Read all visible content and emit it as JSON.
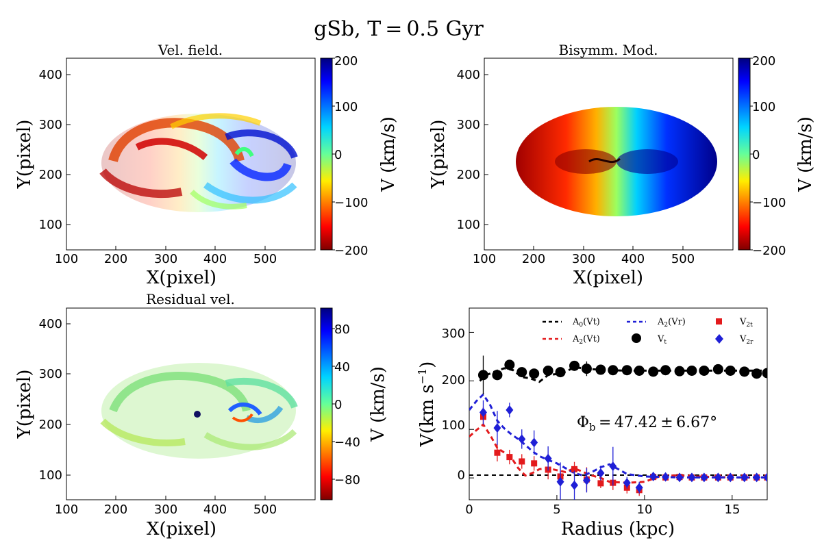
{
  "figure": {
    "suptitle": "gSb, T = 0.5 Gyr"
  },
  "panels": {
    "vel_field": {
      "title": "Vel. field.",
      "xlabel": "X(pixel)",
      "ylabel": "Y(pixel)",
      "xticks": [
        "100",
        "200",
        "300",
        "400",
        "500"
      ],
      "yticks": [
        "100",
        "200",
        "300",
        "400"
      ],
      "colorbar_label": "V (km/s)",
      "colorbar_ticks": [
        "200",
        "100",
        "0",
        "−100",
        "−200"
      ]
    },
    "bisymm_mod": {
      "title": "Bisymm. Mod.",
      "xlabel": "X(pixel)",
      "ylabel": "Y(pixel)",
      "xticks": [
        "100",
        "200",
        "300",
        "400",
        "500"
      ],
      "yticks": [
        "100",
        "200",
        "300",
        "400"
      ],
      "colorbar_label": "V (km/s)",
      "colorbar_ticks": [
        "200",
        "100",
        "0",
        "−100",
        "−200"
      ]
    },
    "residual": {
      "title": "Residual vel.",
      "xlabel": "X(pixel)",
      "ylabel": "Y(pixel)",
      "xticks": [
        "100",
        "200",
        "300",
        "400",
        "500"
      ],
      "yticks": [
        "100",
        "200",
        "300",
        "400"
      ],
      "colorbar_label": "V (km/s)",
      "colorbar_ticks": [
        "80",
        "40",
        "0",
        "−40",
        "−80"
      ]
    },
    "rotation_curve": {
      "xlabel": "Radius (kpc)",
      "ylabel": "V(km s",
      "ylabel_sup": "−1",
      "ylabel_close": ")",
      "xticks": [
        "0",
        "5",
        "10",
        "15"
      ],
      "yticks": [
        "0",
        "100",
        "200",
        "300"
      ],
      "annotation": "Φ",
      "annotation_sub": "b",
      "annotation_rest": " = 47.42 ± 6.67°",
      "legend": {
        "a0vt": "A",
        "a0vt_sub": "0",
        "a0vt_rest": "(Vt)",
        "a2vr": "A",
        "a2vr_sub": "2",
        "a2vr_rest": "(Vr)",
        "v2t": "V",
        "v2t_sub": "2t",
        "a2vt": "A",
        "a2vt_sub": "2",
        "a2vt_rest": "(Vt)",
        "vt": "V",
        "vt_sub": "t",
        "v2r": "V",
        "v2r_sub": "2r"
      }
    }
  },
  "colors": {
    "black_series": "#000000",
    "red_series": "#e31a1c",
    "blue_series": "#1f1fd6"
  },
  "chart_data": {
    "type": "scatter",
    "xlabel": "Radius (kpc)",
    "ylabel": "V(km s^-1)",
    "xlim": [
      0,
      17
    ],
    "ylim": [
      -45,
      350
    ],
    "series": [
      {
        "name": "Vt",
        "marker": "circle",
        "color": "#000000",
        "x": [
          0.8,
          1.6,
          2.3,
          3.0,
          3.7,
          4.5,
          5.2,
          6.0,
          6.7,
          7.5,
          8.2,
          9.0,
          9.7,
          10.5,
          11.2,
          12.0,
          12.7,
          13.4,
          14.2,
          14.9,
          15.7,
          16.4,
          17.0
        ],
        "y": [
          212,
          212,
          233,
          218,
          215,
          221,
          218,
          231,
          225,
          223,
          222,
          222,
          221,
          219,
          222,
          220,
          221,
          221,
          224,
          221,
          219,
          215,
          216
        ],
        "err": [
          40,
          8,
          10,
          10,
          8,
          8,
          8,
          6,
          15,
          6,
          6,
          6,
          6,
          6,
          6,
          5,
          5,
          5,
          5,
          5,
          5,
          5,
          5
        ]
      },
      {
        "name": "V2t",
        "marker": "square",
        "color": "#e31a1c",
        "x": [
          0.8,
          1.6,
          2.3,
          3.0,
          3.7,
          4.5,
          5.2,
          6.0,
          6.7,
          7.5,
          8.2,
          9.0,
          9.7,
          10.5,
          11.2,
          12.0,
          12.7,
          13.4,
          14.2,
          14.9,
          15.7,
          16.4,
          17.0
        ],
        "y": [
          126,
          52,
          43,
          34,
          30,
          17,
          3,
          18,
          -3,
          -11,
          -10,
          -20,
          -25,
          2,
          1,
          2,
          1,
          1,
          1,
          1,
          1,
          1,
          1
        ],
        "err": [
          20,
          18,
          15,
          15,
          15,
          20,
          12,
          15,
          25,
          10,
          15,
          12,
          12,
          4,
          4,
          4,
          4,
          4,
          4,
          4,
          4,
          4,
          4
        ]
      },
      {
        "name": "V2r",
        "marker": "diamond",
        "color": "#1f1fd6",
        "x": [
          0.8,
          1.6,
          2.3,
          3.0,
          3.7,
          4.5,
          5.2,
          6.0,
          6.7,
          7.5,
          8.2,
          9.0,
          9.7,
          10.5,
          11.2,
          12.0,
          12.7,
          13.4,
          14.2,
          14.9,
          15.7,
          16.4,
          17.0
        ],
        "y": [
          135,
          103,
          140,
          80,
          73,
          40,
          -8,
          -15,
          -5,
          10,
          24,
          -10,
          -20,
          3,
          2,
          1,
          1,
          1,
          1,
          1,
          1,
          1,
          1
        ],
        "err": [
          25,
          35,
          15,
          20,
          25,
          25,
          40,
          30,
          25,
          15,
          40,
          12,
          12,
          4,
          4,
          4,
          4,
          4,
          4,
          4,
          4,
          4,
          4
        ]
      },
      {
        "name": "A0(Vt)",
        "style": "dashed",
        "color": "#000000",
        "x": [
          0.6,
          1.0,
          1.5,
          2.0,
          2.5,
          3.0,
          3.5,
          4.0,
          4.5,
          5.0,
          5.5,
          6.0,
          7.0,
          8.0,
          9.0,
          10.0,
          11.0,
          12.0,
          13.0,
          14.0,
          15.0,
          16.0,
          17.0
        ],
        "y": [
          200,
          212,
          220,
          226,
          222,
          208,
          205,
          198,
          212,
          214,
          219,
          228,
          224,
          222,
          221,
          221,
          221,
          221,
          221,
          221,
          221,
          221,
          221
        ]
      },
      {
        "name": "A2(Vt)",
        "style": "dashed",
        "color": "#e31a1c",
        "x": [
          0.0,
          0.4,
          0.8,
          1.2,
          1.6,
          2.0,
          2.4,
          2.8,
          3.2,
          3.6,
          4.0,
          4.5,
          5.0,
          5.5,
          6.0,
          6.5,
          7.0,
          7.5,
          8.0,
          9.0,
          10.0,
          11.0,
          12.0,
          13.0,
          14.0,
          15.0,
          16.0,
          17.0
        ],
        "y": [
          85,
          98,
          110,
          88,
          62,
          52,
          42,
          20,
          5,
          10,
          18,
          20,
          16,
          12,
          20,
          12,
          5,
          0,
          -8,
          -10,
          -8,
          5,
          5,
          3,
          2,
          1,
          1,
          1
        ]
      },
      {
        "name": "A2(Vr)",
        "style": "dashed",
        "color": "#1f1fd6",
        "x": [
          0.0,
          0.4,
          0.8,
          1.2,
          1.6,
          2.0,
          2.4,
          2.8,
          3.2,
          3.6,
          4.0,
          4.5,
          5.0,
          5.5,
          6.0,
          6.5,
          7.0,
          7.5,
          8.0,
          8.5,
          9.0,
          10.0,
          11.0,
          12.0,
          13.0,
          14.0,
          15.0,
          16.0,
          17.0
        ],
        "y": [
          140,
          158,
          172,
          150,
          118,
          102,
          90,
          80,
          68,
          55,
          45,
          37,
          30,
          20,
          10,
          5,
          12,
          22,
          28,
          18,
          8,
          3,
          2,
          1,
          1,
          1,
          1,
          1,
          1
        ]
      }
    ]
  }
}
